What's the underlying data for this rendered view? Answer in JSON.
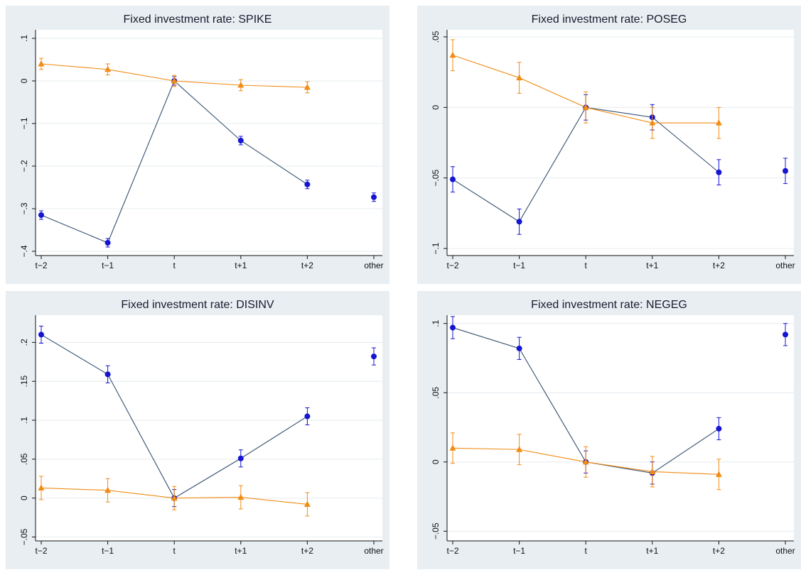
{
  "chart_data": [
    {
      "type": "line",
      "title": "Fixed investment rate: SPIKE",
      "categories": [
        "t−2",
        "t−1",
        "t",
        "t+1",
        "t+2",
        "other"
      ],
      "ylim": [
        -0.41,
        0.12
      ],
      "yticks": [
        0.1,
        0,
        -0.1,
        -0.2,
        -0.3,
        -0.4
      ],
      "ytick_labels": [
        ".1",
        "0",
        "−.1",
        "−.2",
        "−.3",
        "−.4"
      ],
      "grid": true,
      "series": [
        {
          "color": "#1414d2",
          "marker": "circle",
          "values": [
            -0.315,
            -0.38,
            0.0,
            -0.14,
            -0.243,
            -0.273
          ],
          "err": [
            0.01,
            0.01,
            0.01,
            0.01,
            0.01,
            0.01
          ],
          "connect": [
            0,
            1,
            2,
            3,
            4
          ]
        },
        {
          "color": "#f08c14",
          "marker": "triangle",
          "values": [
            0.04,
            0.027,
            0.0,
            -0.01,
            -0.015,
            null
          ],
          "err": [
            0.013,
            0.013,
            0.013,
            0.013,
            0.013,
            null
          ],
          "connect": [
            0,
            1,
            2,
            3,
            4
          ]
        }
      ]
    },
    {
      "type": "line",
      "title": "Fixed investment rate: POSEG",
      "categories": [
        "t−2",
        "t−1",
        "t",
        "t+1",
        "t+2",
        "other"
      ],
      "ylim": [
        -0.105,
        0.055
      ],
      "yticks": [
        0.05,
        0,
        -0.05,
        -0.1
      ],
      "ytick_labels": [
        ".05",
        "0",
        "−.05",
        "−.1"
      ],
      "grid": true,
      "series": [
        {
          "color": "#1414d2",
          "marker": "circle",
          "values": [
            -0.051,
            -0.081,
            0.0,
            -0.007,
            -0.046,
            -0.045
          ],
          "err": [
            0.009,
            0.009,
            0.009,
            0.009,
            0.009,
            0.009
          ],
          "connect": [
            0,
            1,
            2,
            3,
            4
          ]
        },
        {
          "color": "#f08c14",
          "marker": "triangle",
          "values": [
            0.037,
            0.021,
            0.0,
            -0.011,
            -0.011,
            null
          ],
          "err": [
            0.011,
            0.011,
            0.011,
            0.011,
            0.011,
            null
          ],
          "connect": [
            0,
            1,
            2,
            3,
            4
          ]
        }
      ]
    },
    {
      "type": "line",
      "title": "Fixed investment rate: DISINV",
      "categories": [
        "t−2",
        "t−1",
        "t",
        "t+1",
        "t+2",
        "other"
      ],
      "ylim": [
        -0.055,
        0.235
      ],
      "yticks": [
        0.2,
        0.15,
        0.1,
        0.05,
        0,
        -0.05
      ],
      "ytick_labels": [
        ".2",
        ".15",
        ".1",
        ".05",
        "0",
        "−.05"
      ],
      "grid": true,
      "series": [
        {
          "color": "#1414d2",
          "marker": "circle",
          "values": [
            0.21,
            0.159,
            0.0,
            0.051,
            0.105,
            0.182
          ],
          "err": [
            0.011,
            0.011,
            0.011,
            0.011,
            0.011,
            0.011
          ],
          "connect": [
            0,
            1,
            2,
            3,
            4
          ]
        },
        {
          "color": "#f08c14",
          "marker": "triangle",
          "values": [
            0.013,
            0.01,
            0.0,
            0.001,
            -0.008,
            null
          ],
          "err": [
            0.015,
            0.015,
            0.015,
            0.015,
            0.015,
            null
          ],
          "connect": [
            0,
            1,
            2,
            3,
            4
          ]
        }
      ]
    },
    {
      "type": "line",
      "title": "Fixed investment rate: NEGEG",
      "categories": [
        "t−2",
        "t−1",
        "t",
        "t+1",
        "t+2",
        "other"
      ],
      "ylim": [
        -0.057,
        0.106
      ],
      "yticks": [
        0.1,
        0.05,
        0,
        -0.05
      ],
      "ytick_labels": [
        ".1",
        ".05",
        "0",
        "−.05"
      ],
      "grid": true,
      "series": [
        {
          "color": "#1414d2",
          "marker": "circle",
          "values": [
            0.097,
            0.082,
            0.0,
            -0.008,
            0.024,
            0.092
          ],
          "err": [
            0.008,
            0.008,
            0.008,
            0.008,
            0.008,
            0.008
          ],
          "connect": [
            0,
            1,
            2,
            3,
            4
          ]
        },
        {
          "color": "#f08c14",
          "marker": "triangle",
          "values": [
            0.01,
            0.009,
            0.0,
            -0.007,
            -0.009,
            null
          ],
          "err": [
            0.011,
            0.011,
            0.011,
            0.011,
            0.011,
            null
          ],
          "connect": [
            0,
            1,
            2,
            3,
            4
          ]
        }
      ]
    }
  ]
}
